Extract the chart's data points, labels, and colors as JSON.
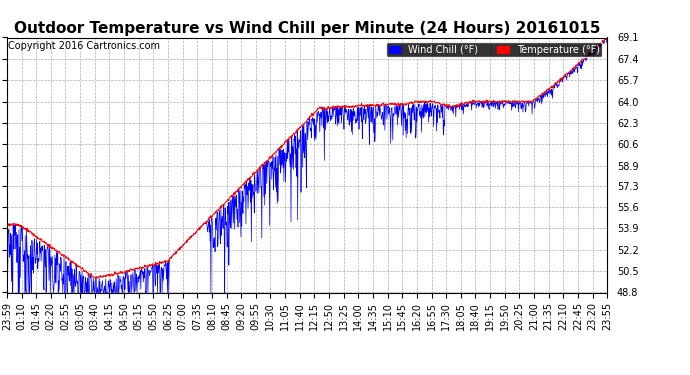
{
  "title": "Outdoor Temperature vs Wind Chill per Minute (24 Hours) 20161015",
  "copyright": "Copyright 2016 Cartronics.com",
  "ylabel_values": [
    48.8,
    50.5,
    52.2,
    53.9,
    55.6,
    57.3,
    58.9,
    60.6,
    62.3,
    64.0,
    65.7,
    67.4,
    69.1
  ],
  "ylim": [
    48.8,
    69.1
  ],
  "temp_color": "#ff0000",
  "wind_color": "#0000ff",
  "bg_color": "#ffffff",
  "grid_color": "#999999",
  "title_fontsize": 11,
  "tick_fontsize": 7,
  "copyright_fontsize": 7,
  "n_points": 1440,
  "xtick_labels": [
    "23:59",
    "01:10",
    "01:45",
    "02:20",
    "02:55",
    "03:05",
    "03:40",
    "04:15",
    "04:50",
    "05:15",
    "05:50",
    "06:25",
    "07:00",
    "07:35",
    "08:10",
    "08:45",
    "09:20",
    "09:55",
    "10:30",
    "11:05",
    "11:40",
    "12:15",
    "12:50",
    "13:25",
    "14:00",
    "14:35",
    "15:10",
    "15:45",
    "16:20",
    "16:55",
    "17:30",
    "18:05",
    "18:40",
    "19:15",
    "19:50",
    "20:25",
    "21:00",
    "21:35",
    "22:10",
    "22:45",
    "23:20",
    "23:55"
  ]
}
